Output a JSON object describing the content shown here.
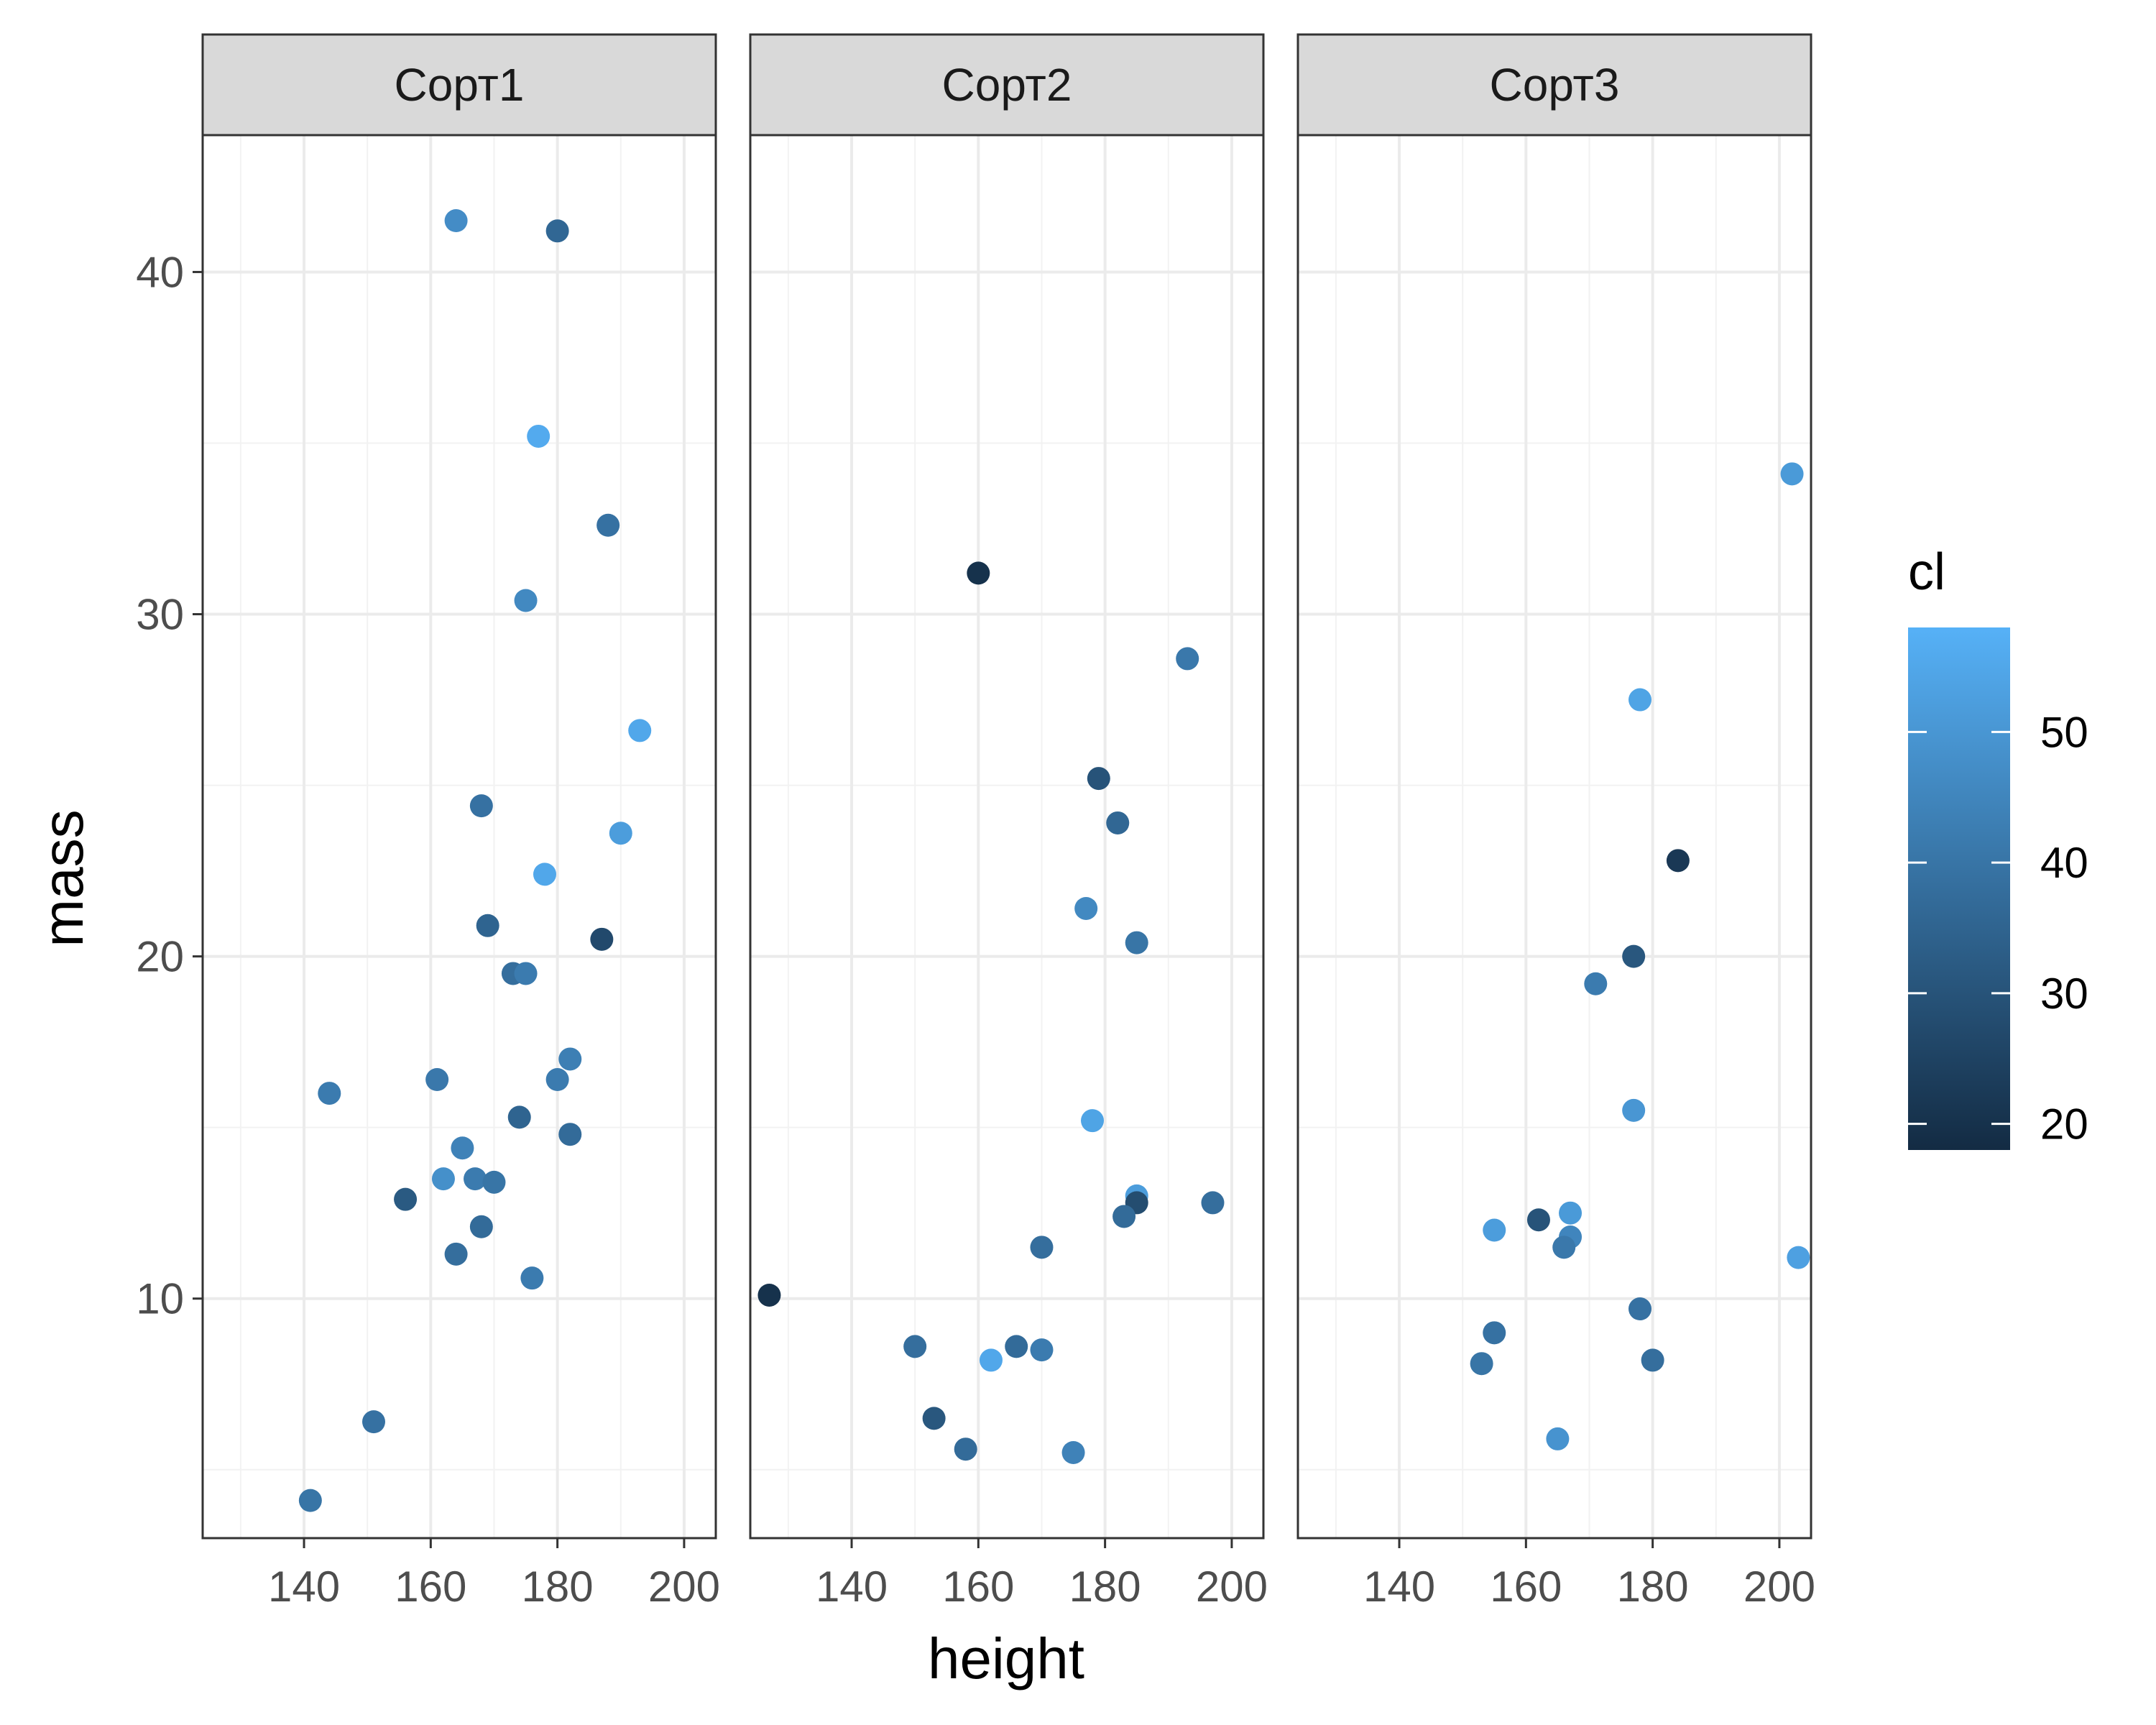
{
  "chart_data": {
    "type": "scatter",
    "xlabel": "height",
    "ylabel": "mass",
    "xlim": [
      124,
      205
    ],
    "ylim": [
      3,
      44
    ],
    "x_ticks": [
      140,
      160,
      180,
      200
    ],
    "y_ticks": [
      10,
      20,
      30,
      40
    ],
    "grid": true,
    "legend": {
      "title": "cl",
      "placement": "right",
      "type": "colorbar",
      "range": [
        18,
        58
      ],
      "ticks": [
        20,
        30,
        40,
        50
      ],
      "low_color": "#132B43",
      "high_color": "#56B1F7"
    },
    "facets": [
      {
        "label": "Сорт1",
        "points": [
          {
            "x": 164,
            "y": 41.5,
            "cl": 47
          },
          {
            "x": 180,
            "y": 41.2,
            "cl": 36
          },
          {
            "x": 177,
            "y": 35.2,
            "cl": 56
          },
          {
            "x": 188,
            "y": 32.6,
            "cl": 39
          },
          {
            "x": 175,
            "y": 30.4,
            "cl": 46
          },
          {
            "x": 193,
            "y": 26.6,
            "cl": 55
          },
          {
            "x": 168,
            "y": 24.4,
            "cl": 39
          },
          {
            "x": 190,
            "y": 23.6,
            "cl": 52
          },
          {
            "x": 178,
            "y": 22.4,
            "cl": 55
          },
          {
            "x": 169,
            "y": 20.9,
            "cl": 35
          },
          {
            "x": 187,
            "y": 20.5,
            "cl": 27
          },
          {
            "x": 173,
            "y": 19.5,
            "cl": 38
          },
          {
            "x": 175,
            "y": 19.5,
            "cl": 42
          },
          {
            "x": 182,
            "y": 17.0,
            "cl": 43
          },
          {
            "x": 161,
            "y": 16.4,
            "cl": 41
          },
          {
            "x": 180,
            "y": 16.4,
            "cl": 42
          },
          {
            "x": 144,
            "y": 16.0,
            "cl": 42
          },
          {
            "x": 174,
            "y": 15.3,
            "cl": 35
          },
          {
            "x": 182,
            "y": 14.8,
            "cl": 37
          },
          {
            "x": 165,
            "y": 14.4,
            "cl": 44
          },
          {
            "x": 162,
            "y": 13.5,
            "cl": 48
          },
          {
            "x": 167,
            "y": 13.5,
            "cl": 42
          },
          {
            "x": 170,
            "y": 13.4,
            "cl": 40
          },
          {
            "x": 156,
            "y": 12.9,
            "cl": 32
          },
          {
            "x": 168,
            "y": 12.1,
            "cl": 37
          },
          {
            "x": 164,
            "y": 11.3,
            "cl": 38
          },
          {
            "x": 176,
            "y": 10.6,
            "cl": 42
          },
          {
            "x": 151,
            "y": 6.4,
            "cl": 39
          },
          {
            "x": 141,
            "y": 4.1,
            "cl": 40
          }
        ]
      },
      {
        "label": "Сорт2",
        "points": [
          {
            "x": 160,
            "y": 31.2,
            "cl": 20
          },
          {
            "x": 193,
            "y": 28.7,
            "cl": 41
          },
          {
            "x": 179,
            "y": 25.2,
            "cl": 30
          },
          {
            "x": 182,
            "y": 23.9,
            "cl": 36
          },
          {
            "x": 177,
            "y": 21.4,
            "cl": 46
          },
          {
            "x": 185,
            "y": 20.4,
            "cl": 40
          },
          {
            "x": 178,
            "y": 15.2,
            "cl": 54
          },
          {
            "x": 185,
            "y": 13.0,
            "cl": 52
          },
          {
            "x": 197,
            "y": 12.8,
            "cl": 38
          },
          {
            "x": 185,
            "y": 12.8,
            "cl": 28
          },
          {
            "x": 183,
            "y": 12.4,
            "cl": 37
          },
          {
            "x": 170,
            "y": 11.5,
            "cl": 38
          },
          {
            "x": 127,
            "y": 10.1,
            "cl": 20
          },
          {
            "x": 150,
            "y": 8.6,
            "cl": 38
          },
          {
            "x": 166,
            "y": 8.6,
            "cl": 37
          },
          {
            "x": 170,
            "y": 8.5,
            "cl": 42
          },
          {
            "x": 162,
            "y": 8.2,
            "cl": 55
          },
          {
            "x": 153,
            "y": 6.5,
            "cl": 31
          },
          {
            "x": 158,
            "y": 5.6,
            "cl": 37
          },
          {
            "x": 175,
            "y": 5.5,
            "cl": 44
          }
        ]
      },
      {
        "label": "Сорт3",
        "points": [
          {
            "x": 202,
            "y": 34.1,
            "cl": 51
          },
          {
            "x": 178,
            "y": 27.5,
            "cl": 54
          },
          {
            "x": 184,
            "y": 22.8,
            "cl": 22
          },
          {
            "x": 177,
            "y": 20.0,
            "cl": 31
          },
          {
            "x": 171,
            "y": 19.2,
            "cl": 42
          },
          {
            "x": 177,
            "y": 15.5,
            "cl": 50
          },
          {
            "x": 167,
            "y": 12.5,
            "cl": 51
          },
          {
            "x": 162,
            "y": 12.3,
            "cl": 30
          },
          {
            "x": 155,
            "y": 12.0,
            "cl": 52
          },
          {
            "x": 167,
            "y": 11.8,
            "cl": 45
          },
          {
            "x": 166,
            "y": 11.5,
            "cl": 41
          },
          {
            "x": 203,
            "y": 11.2,
            "cl": 53
          },
          {
            "x": 178,
            "y": 9.7,
            "cl": 39
          },
          {
            "x": 155,
            "y": 9.0,
            "cl": 39
          },
          {
            "x": 180,
            "y": 8.2,
            "cl": 38
          },
          {
            "x": 153,
            "y": 8.1,
            "cl": 40
          },
          {
            "x": 165,
            "y": 5.9,
            "cl": 49
          }
        ]
      }
    ]
  }
}
